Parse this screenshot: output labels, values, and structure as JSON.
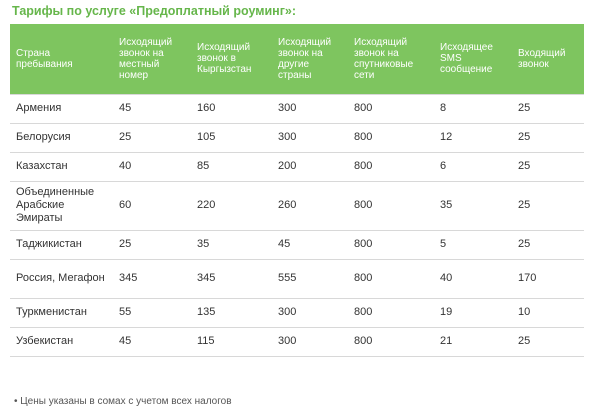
{
  "title": "Тарифы по услуге «Предоплатный роуминг»:",
  "columns": [
    "Страна пребывания",
    "Исходящий звонок на местный номер",
    "Исходящий звонок в Кыргызстан",
    "Исходящий звонок на другие страны",
    "Исходящий звонок на спутниковые сети",
    "Исходящее SMS сообщение",
    "Входящий звонок"
  ],
  "rows": [
    {
      "country": "Армения",
      "local": "45",
      "kyrgyzstan": "160",
      "other": "300",
      "satellite": "800",
      "sms": "8",
      "incoming": "25"
    },
    {
      "country": "Белорусия",
      "local": "25",
      "kyrgyzstan": "105",
      "other": "300",
      "satellite": "800",
      "sms": "12",
      "incoming": "25"
    },
    {
      "country": "Казахстан",
      "local": "40",
      "kyrgyzstan": "85",
      "other": "200",
      "satellite": "800",
      "sms": "6",
      "incoming": "25"
    },
    {
      "country": "Объединенные Арабские Эмираты",
      "local": "60",
      "kyrgyzstan": "220",
      "other": "260",
      "satellite": "800",
      "sms": "35",
      "incoming": "25"
    },
    {
      "country": "Таджикистан",
      "local": "25",
      "kyrgyzstan": "35",
      "other": "45",
      "satellite": "800",
      "sms": "5",
      "incoming": "25"
    },
    {
      "country": "Россия, Мегафон",
      "local": "345",
      "kyrgyzstan": "345",
      "other": "555",
      "satellite": "800",
      "sms": "40",
      "incoming": "170"
    },
    {
      "country": "Туркменистан",
      "local": "55",
      "kyrgyzstan": "135",
      "other": "300",
      "satellite": "800",
      "sms": "19",
      "incoming": "10"
    },
    {
      "country": "Узбекистан",
      "local": "45",
      "kyrgyzstan": "115",
      "other": "300",
      "satellite": "800",
      "sms": "21",
      "incoming": "25"
    }
  ],
  "footnote": "• Цены указаны в сомах с учетом всех налогов",
  "colors": {
    "title": "#66b64b",
    "header_bg": "#7ec55f",
    "header_text": "#ffffff",
    "row_border": "#d8d8d8"
  }
}
